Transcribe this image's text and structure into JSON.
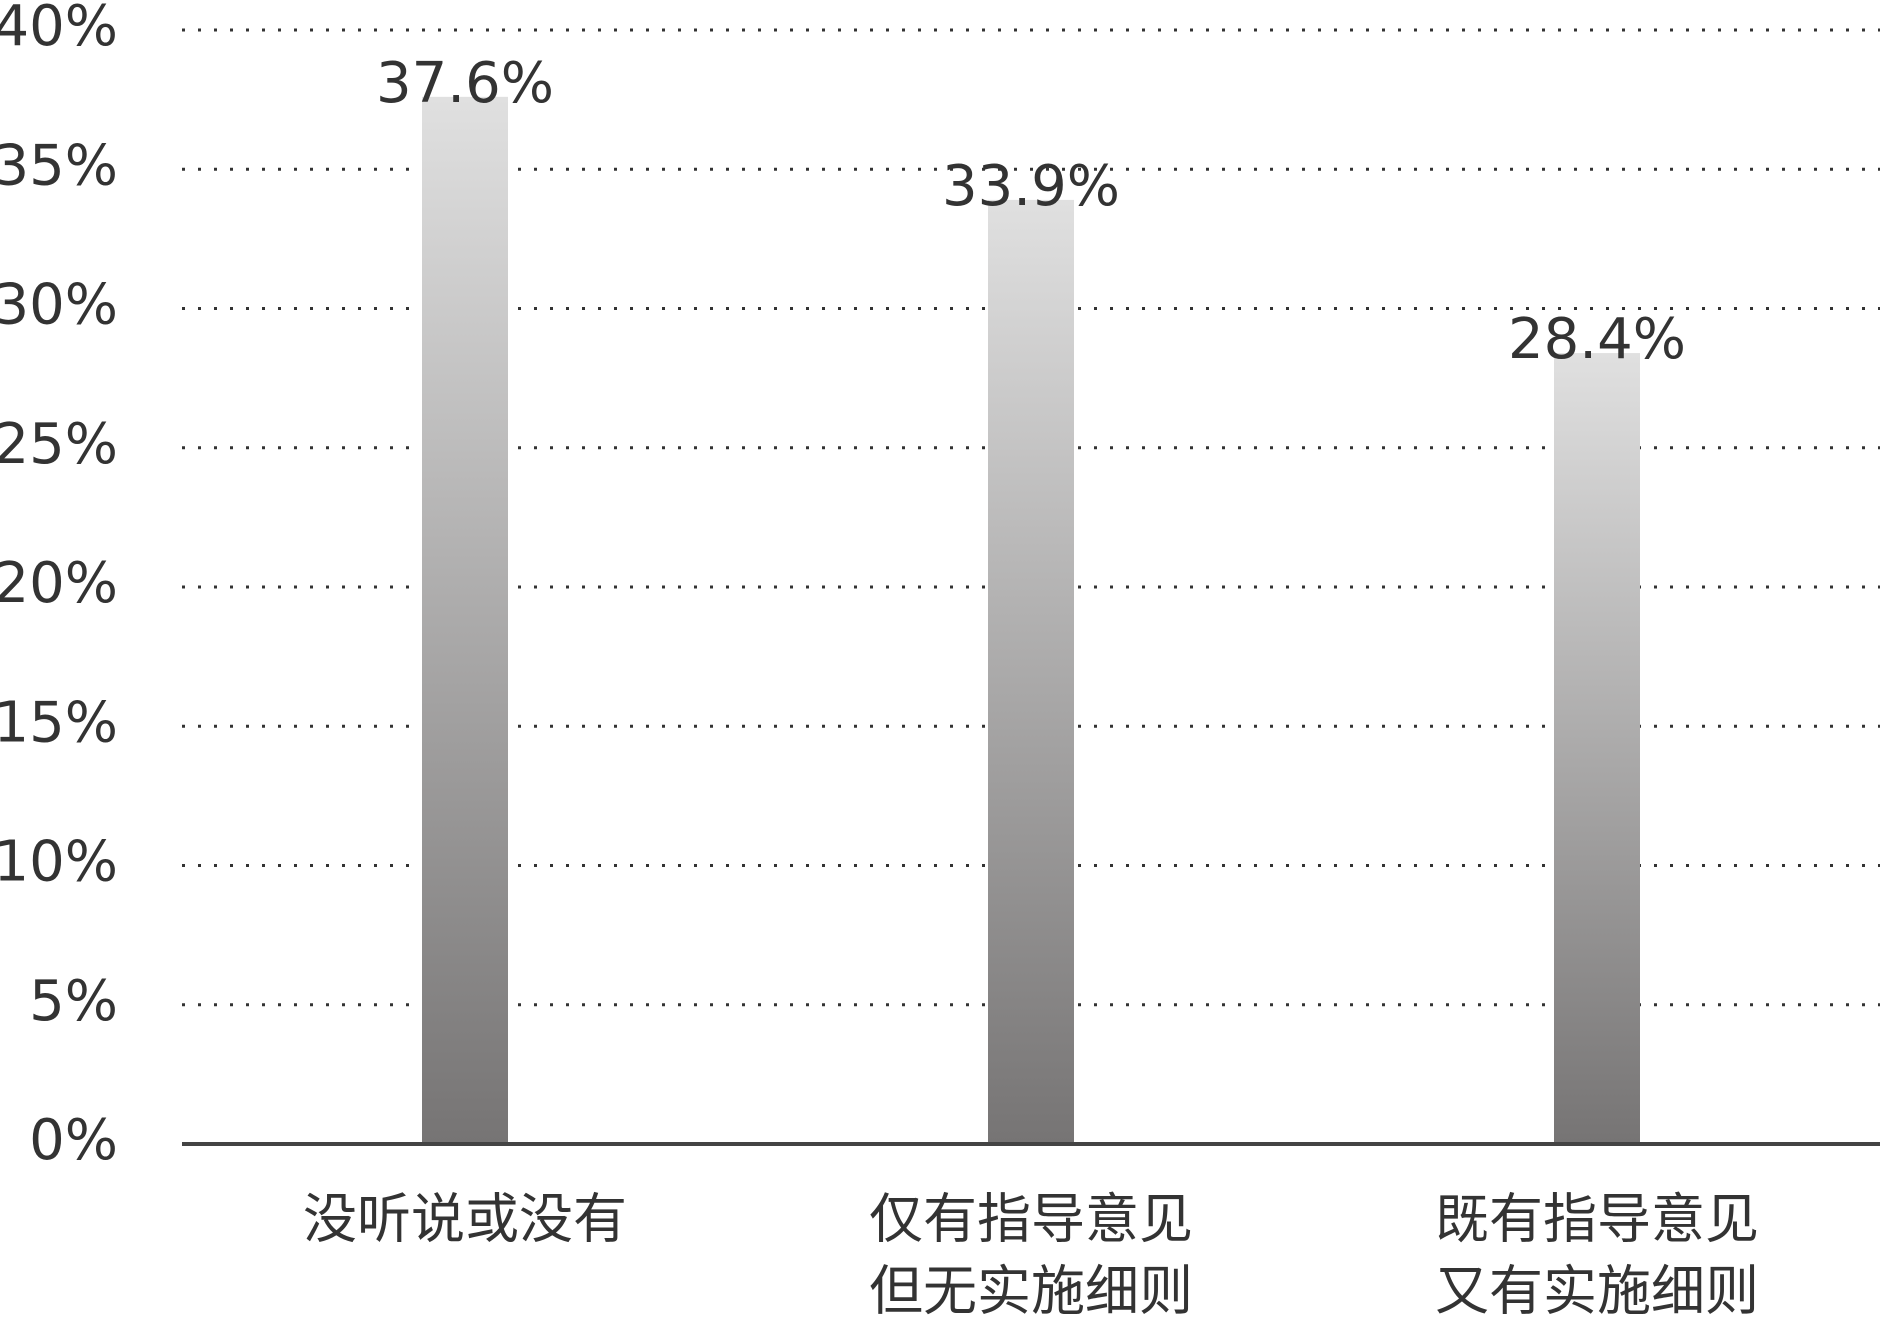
{
  "chart_data": {
    "type": "bar",
    "categories": [
      [
        "没听说或没有"
      ],
      [
        "仅有指导意见",
        "但无实施细则"
      ],
      [
        "既有指导意见",
        "又有实施细则"
      ]
    ],
    "values": [
      37.6,
      33.9,
      28.4
    ],
    "value_labels": [
      "37.6%",
      "33.9%",
      "28.4%"
    ],
    "color": [
      "#e0e0e0",
      "#767474"
    ],
    "ylim": [
      0,
      40
    ],
    "yticks": [
      {
        "value": 0,
        "label": "0%"
      },
      {
        "value": 5,
        "label": "5%"
      },
      {
        "value": 10,
        "label": "10%"
      },
      {
        "value": 15,
        "label": "15%"
      },
      {
        "value": 20,
        "label": "20%"
      },
      {
        "value": 25,
        "label": "25%"
      },
      {
        "value": 30,
        "label": "30%"
      },
      {
        "value": 35,
        "label": "35%"
      },
      {
        "value": 40,
        "label": "40%"
      }
    ],
    "grid": true
  }
}
